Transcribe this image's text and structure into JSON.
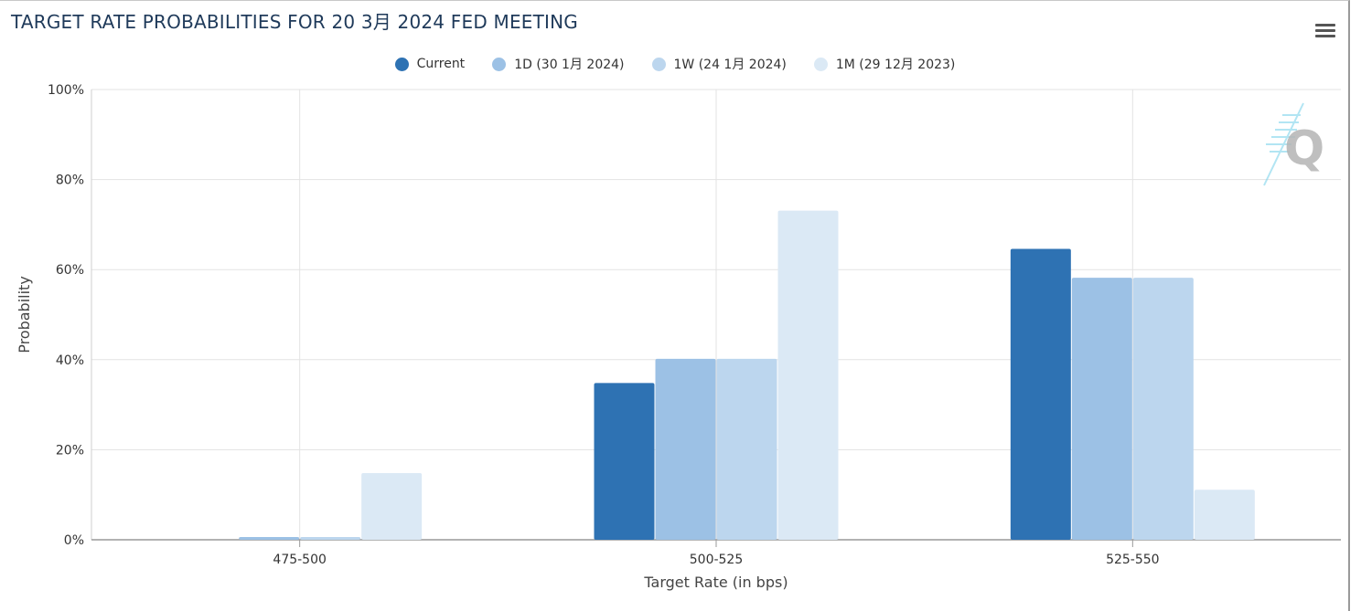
{
  "title": "TARGET RATE PROBABILITIES FOR 20 3月 2024 FED MEETING",
  "menu": {
    "icon": "hamburger-menu-icon"
  },
  "watermark": {
    "icon": "q-logo-icon",
    "text": "Q"
  },
  "colors": {
    "current": "#2e72b3",
    "d1": "#9cc1e5",
    "w1": "#bcd6ee",
    "m1": "#dbe9f5"
  },
  "chart_data": {
    "type": "bar",
    "title": "TARGET RATE PROBABILITIES FOR 20 3月 2024 FED MEETING",
    "xlabel": "Target Rate (in bps)",
    "ylabel": "Probability",
    "categories": [
      "475-500",
      "500-525",
      "525-550"
    ],
    "ylim": [
      0,
      100
    ],
    "yticks": [
      "0%",
      "20%",
      "40%",
      "60%",
      "80%",
      "100%"
    ],
    "grid": true,
    "legend_position": "top-center",
    "series": [
      {
        "name": "Current",
        "values": [
          0,
          34.8,
          64.6
        ]
      },
      {
        "name": "1D (30 1月 2024)",
        "values": [
          0.6,
          40.2,
          58.2
        ]
      },
      {
        "name": "1W (24 1月 2024)",
        "values": [
          0.6,
          40.2,
          58.2
        ]
      },
      {
        "name": "1M (29 12月 2023)",
        "values": [
          14.8,
          73.1,
          11.1
        ]
      }
    ]
  }
}
